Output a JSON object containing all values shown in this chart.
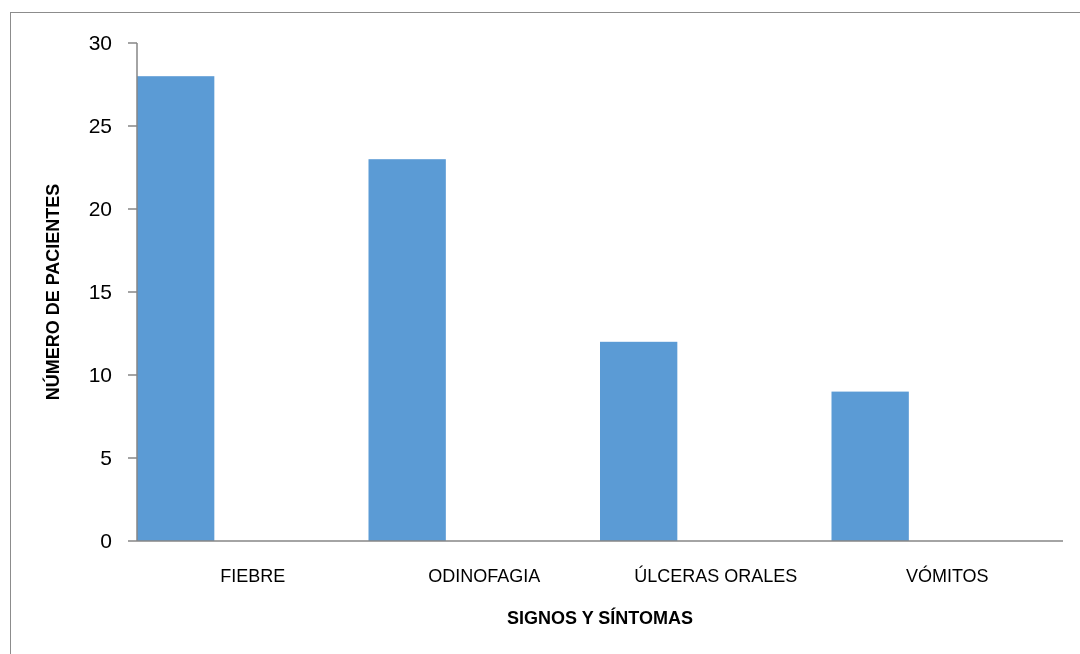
{
  "chart_data": {
    "type": "bar",
    "xlabel": "SIGNOS Y SÍNTOMAS",
    "ylabel": "NÚMERO DE PACIENTES",
    "categories": [
      "FIEBRE",
      "ODINOFAGIA",
      "ÚLCERAS ORALES",
      "VÓMITOS"
    ],
    "values": [
      28,
      23,
      12,
      9
    ],
    "color": "#5b9bd5",
    "ylim": [
      0,
      30
    ],
    "yticks": [
      0,
      5,
      10,
      15,
      20,
      25,
      30
    ]
  }
}
